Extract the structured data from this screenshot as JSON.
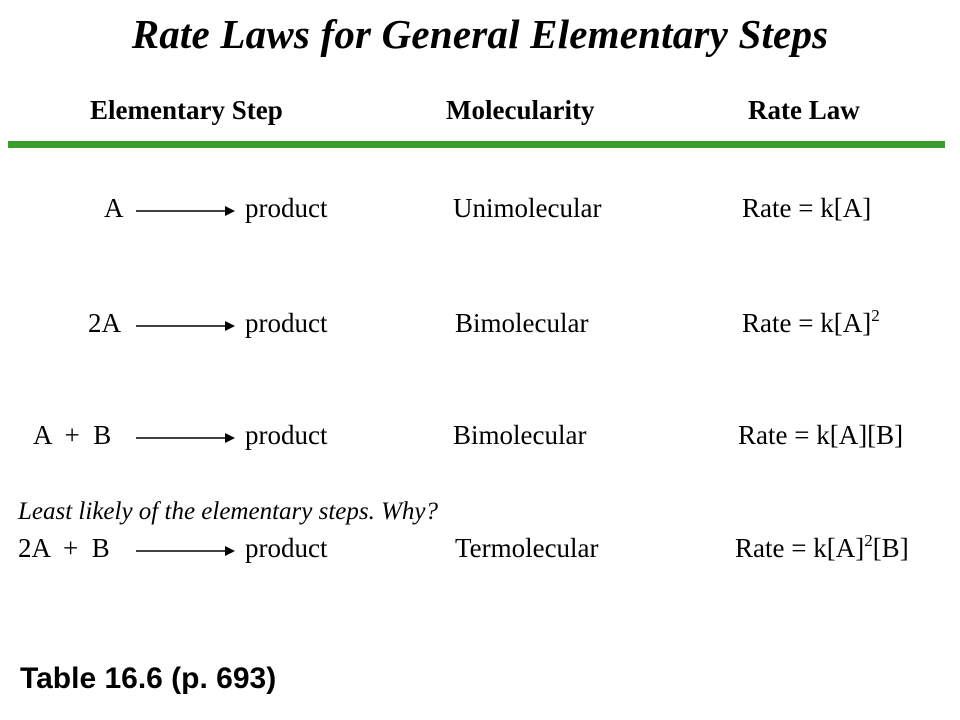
{
  "title": "Rate Laws for General Elementary Steps",
  "headers": {
    "step": "Elementary Step",
    "molecularity": "Molecularity",
    "rate_law": "Rate Law"
  },
  "rows": [
    {
      "reactants": "A",
      "product": "product",
      "molecularity": "Unimolecular",
      "rate_prefix": "Rate = k[A]",
      "rate_exp": "",
      "rate_suffix": ""
    },
    {
      "reactants": "2A",
      "product": "product",
      "molecularity": "Bimolecular",
      "rate_prefix": "Rate = k[A]",
      "rate_exp": "2",
      "rate_suffix": ""
    },
    {
      "reactants": "A  +  B",
      "product": "product",
      "molecularity": "Bimolecular",
      "rate_prefix": "Rate = k[A][B]",
      "rate_exp": "",
      "rate_suffix": ""
    },
    {
      "reactants": "2A  +  B",
      "product": "product",
      "molecularity": "Termolecular",
      "rate_prefix": "Rate = k[A]",
      "rate_exp": "2",
      "rate_suffix": "[B]"
    }
  ],
  "note": "Least likely of the elementary steps. Why?",
  "caption": "Table 16.6 (p. 693)",
  "colors": {
    "rule": "#3a9d2e"
  }
}
